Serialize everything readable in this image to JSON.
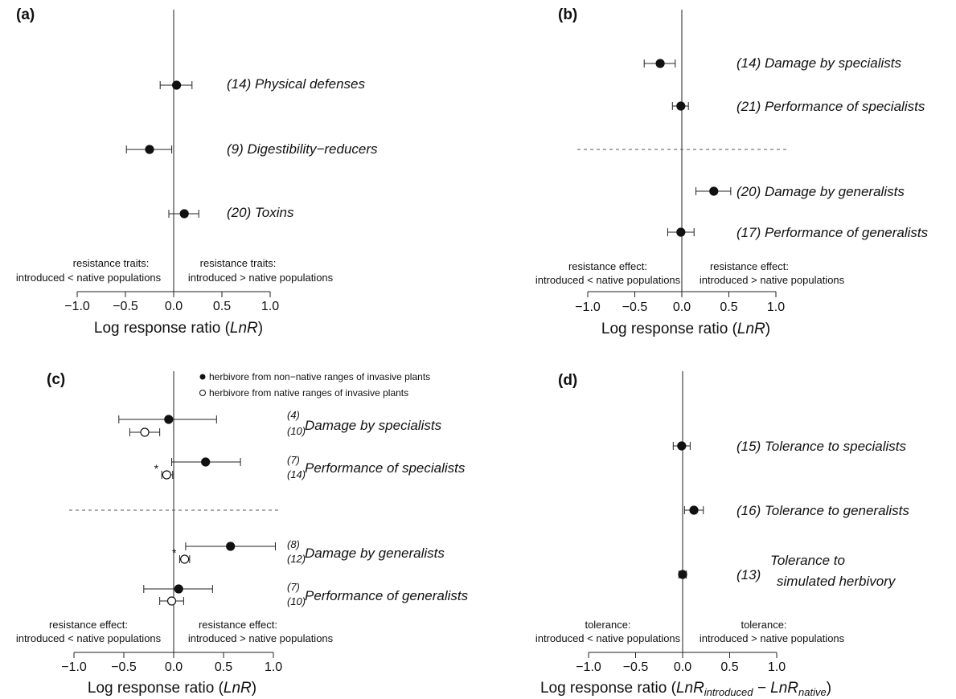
{
  "axis": {
    "ticks": [
      "−1.0",
      "−0.5",
      "0.0",
      "0.5",
      "1.0"
    ],
    "tick_values": [
      -1.0,
      -0.5,
      0.0,
      0.5,
      1.0
    ],
    "xlim": [
      -1.0,
      1.0
    ],
    "title": "Log response ratio (LnR)",
    "title_d": "Log response ratio (LnR introduced − LnR native)"
  },
  "chart_data": [
    {
      "panel": "(a)",
      "type": "scatter",
      "xlabel": "Log response ratio (LnR)",
      "xlim": [
        -1.0,
        1.0
      ],
      "points": [
        {
          "label": "(14) Physical defenses",
          "estimate": 0.03,
          "ci": [
            -0.14,
            0.19
          ]
        },
        {
          "label": "(9) Digestibility−reducers",
          "estimate": -0.25,
          "ci": [
            -0.49,
            -0.02
          ]
        },
        {
          "label": "(20) Toxins",
          "estimate": 0.11,
          "ci": [
            -0.05,
            0.26
          ]
        }
      ],
      "left_note": [
        "resistance traits:",
        "introduced < native populations"
      ],
      "right_note": [
        "resistance traits:",
        "introduced > native populations"
      ]
    },
    {
      "panel": "(b)",
      "type": "scatter",
      "xlabel": "Log response ratio (LnR)",
      "xlim": [
        -1.0,
        1.0
      ],
      "points": [
        {
          "label": "(14) Damage by specialists",
          "estimate": -0.23,
          "ci": [
            -0.4,
            -0.07
          ]
        },
        {
          "label": "(21) Performance of specialists",
          "estimate": -0.01,
          "ci": [
            -0.1,
            0.07
          ]
        },
        {
          "label": "(20) Damage by generalists",
          "estimate": 0.34,
          "ci": [
            0.15,
            0.52
          ]
        },
        {
          "label": "(17) Performance of generalists",
          "estimate": -0.01,
          "ci": [
            -0.15,
            0.13
          ]
        }
      ],
      "left_note": [
        "resistance effect:",
        "introduced < native populations"
      ],
      "right_note": [
        "resistance effect:",
        "introduced > native populations"
      ]
    },
    {
      "panel": "(c)",
      "type": "scatter",
      "xlabel": "Log response ratio (LnR)",
      "xlim": [
        -1.0,
        1.0
      ],
      "legend": [
        "herbivore from non−native ranges of invasive plants",
        "herbivore from native ranges of invasive plants"
      ],
      "groups": [
        {
          "label": "Damage by specialists",
          "n_filled": "(4)",
          "n_open": "(10)",
          "filled": {
            "estimate": -0.05,
            "ci": [
              -0.55,
              0.43
            ]
          },
          "open": {
            "estimate": -0.29,
            "ci": [
              -0.44,
              -0.14
            ]
          },
          "star": ""
        },
        {
          "label": "Performance of specialists",
          "n_filled": "(7)",
          "n_open": "(14)",
          "filled": {
            "estimate": 0.32,
            "ci": [
              -0.02,
              0.67
            ]
          },
          "open": {
            "estimate": -0.07,
            "ci": [
              -0.12,
              -0.01
            ]
          },
          "star": "*"
        },
        {
          "label": "Damage by generalists",
          "n_filled": "(8)",
          "n_open": "(12)",
          "filled": {
            "estimate": 0.57,
            "ci": [
              0.12,
              1.02
            ]
          },
          "open": {
            "estimate": 0.11,
            "ci": [
              0.06,
              0.16
            ]
          },
          "star": "*"
        },
        {
          "label": "Performance of generalists",
          "n_filled": "(7)",
          "n_open": "(10)",
          "filled": {
            "estimate": 0.05,
            "ci": [
              -0.3,
              0.39
            ]
          },
          "open": {
            "estimate": -0.02,
            "ci": [
              -0.14,
              0.1
            ]
          },
          "star": ""
        }
      ],
      "left_note": [
        "resistance effect:",
        "introduced < native populations"
      ],
      "right_note": [
        "resistance effect:",
        "introduced > native populations"
      ]
    },
    {
      "panel": "(d)",
      "type": "scatter",
      "xlabel": "Log response ratio (LnR introduced − LnR native)",
      "xlim": [
        -1.0,
        1.0
      ],
      "points": [
        {
          "label": "(15) Tolerance to specialists",
          "estimate": -0.01,
          "ci": [
            -0.1,
            0.08
          ]
        },
        {
          "label": "(16) Tolerance to generalists",
          "estimate": 0.12,
          "ci": [
            0.02,
            0.22
          ]
        },
        {
          "label": "(13) Tolerance to simulated herbivory",
          "estimate": 0.0,
          "ci": [
            -0.04,
            0.04
          ]
        }
      ],
      "left_note": [
        "tolerance:",
        "introduced < native populations"
      ],
      "right_note": [
        "tolerance:",
        "introduced > native populations"
      ]
    }
  ]
}
